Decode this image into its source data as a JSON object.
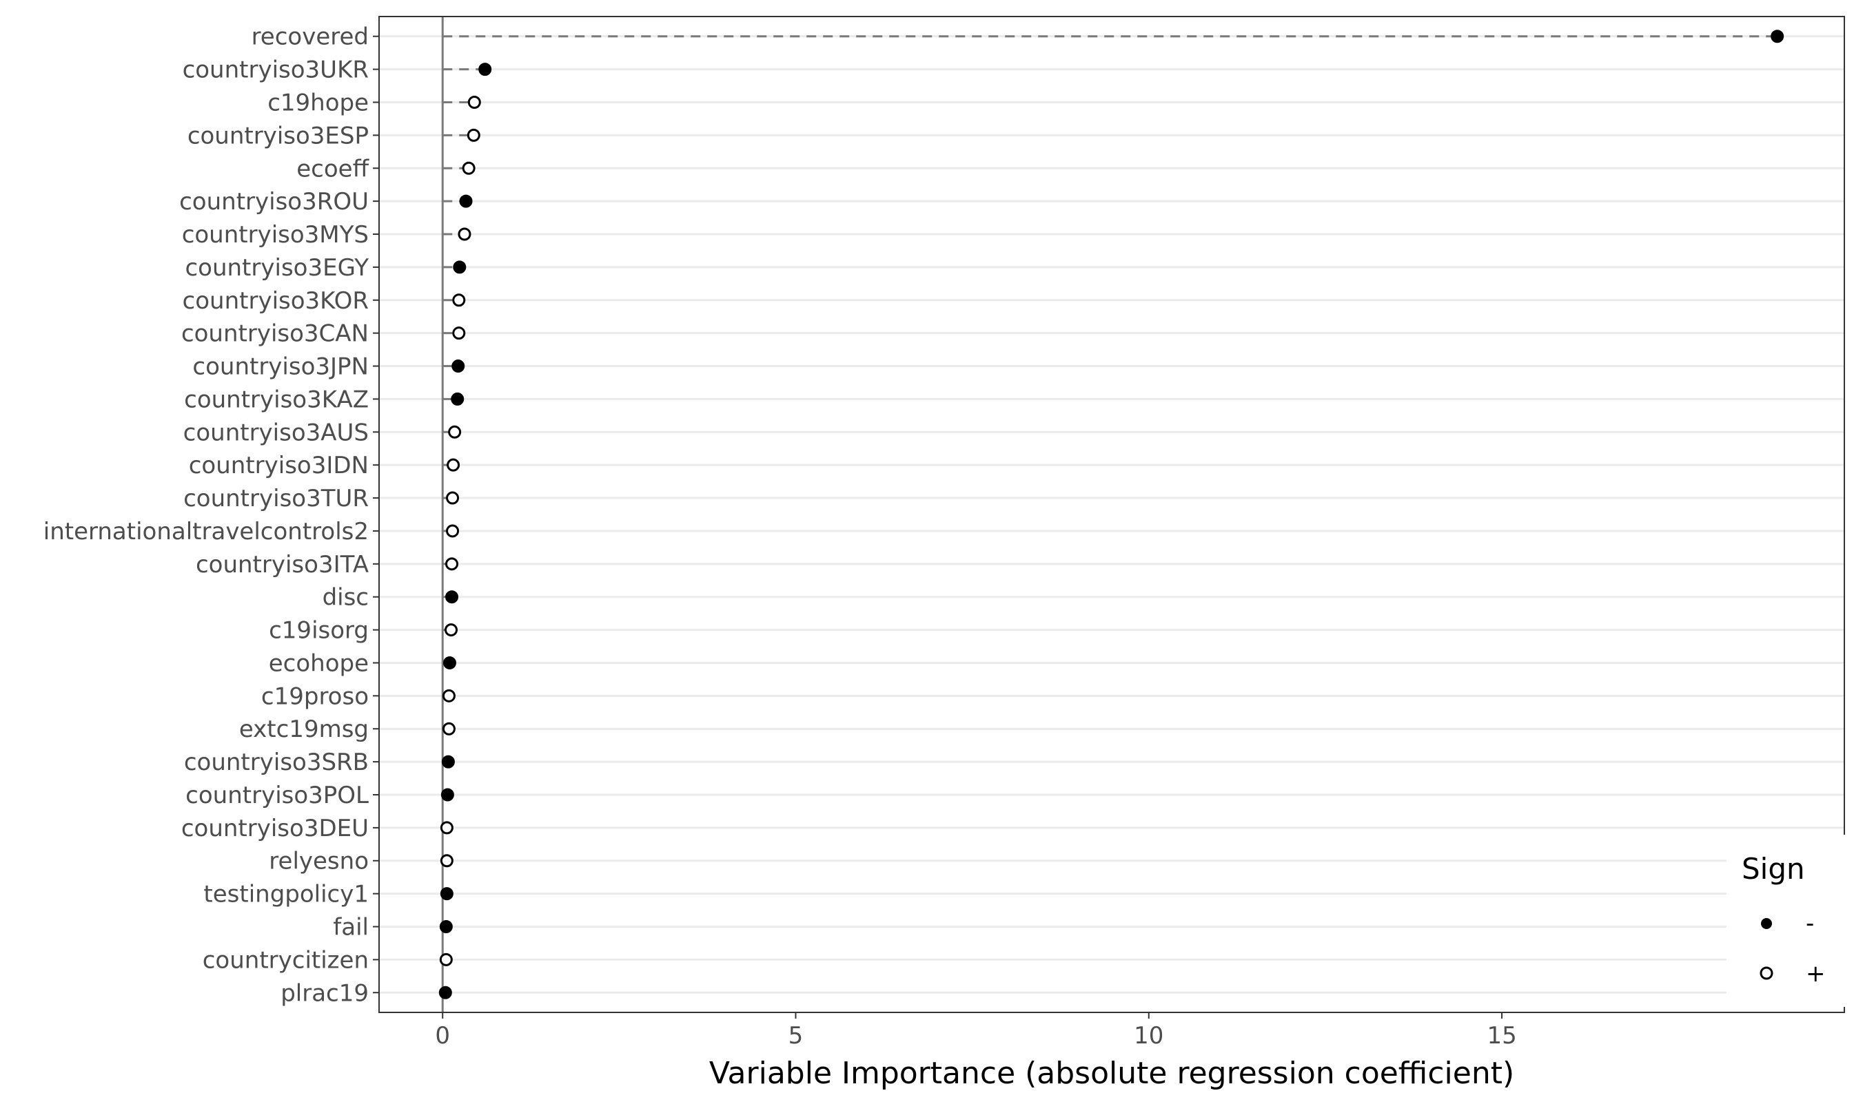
{
  "chart_data": {
    "type": "scatter",
    "title": "",
    "xlabel": "Variable Importance (absolute regression coefficient)",
    "ylabel": "",
    "xlim": [
      -0.9,
      19.85
    ],
    "x_ticks": [
      0,
      5,
      10,
      15
    ],
    "grid": "horizontal major",
    "legend": {
      "title": "Sign",
      "placement": "bottom-right",
      "entries": [
        {
          "label": "-",
          "marker": "filled",
          "color": "#000000"
        },
        {
          "label": "+",
          "marker": "open",
          "color": "#000000"
        }
      ]
    },
    "points": [
      {
        "variable": "recovered",
        "importance": 18.9,
        "sign": "-"
      },
      {
        "variable": "countryiso3UKR",
        "importance": 0.6,
        "sign": "-"
      },
      {
        "variable": "c19hope",
        "importance": 0.45,
        "sign": "+"
      },
      {
        "variable": "countryiso3ESP",
        "importance": 0.44,
        "sign": "+"
      },
      {
        "variable": "ecoeff",
        "importance": 0.37,
        "sign": "+"
      },
      {
        "variable": "countryiso3ROU",
        "importance": 0.33,
        "sign": "-"
      },
      {
        "variable": "countryiso3MYS",
        "importance": 0.31,
        "sign": "+"
      },
      {
        "variable": "countryiso3EGY",
        "importance": 0.24,
        "sign": "-"
      },
      {
        "variable": "countryiso3KOR",
        "importance": 0.23,
        "sign": "+"
      },
      {
        "variable": "countryiso3CAN",
        "importance": 0.23,
        "sign": "+"
      },
      {
        "variable": "countryiso3JPN",
        "importance": 0.22,
        "sign": "-"
      },
      {
        "variable": "countryiso3KAZ",
        "importance": 0.21,
        "sign": "-"
      },
      {
        "variable": "countryiso3AUS",
        "importance": 0.17,
        "sign": "+"
      },
      {
        "variable": "countryiso3IDN",
        "importance": 0.15,
        "sign": "+"
      },
      {
        "variable": "countryiso3TUR",
        "importance": 0.14,
        "sign": "+"
      },
      {
        "variable": "internationaltravelcontrols2",
        "importance": 0.14,
        "sign": "+"
      },
      {
        "variable": "countryiso3ITA",
        "importance": 0.13,
        "sign": "+"
      },
      {
        "variable": "disc",
        "importance": 0.13,
        "sign": "-"
      },
      {
        "variable": "c19isorg",
        "importance": 0.12,
        "sign": "+"
      },
      {
        "variable": "ecohope",
        "importance": 0.1,
        "sign": "-"
      },
      {
        "variable": "c19proso",
        "importance": 0.09,
        "sign": "+"
      },
      {
        "variable": "extc19msg",
        "importance": 0.09,
        "sign": "+"
      },
      {
        "variable": "countryiso3SRB",
        "importance": 0.08,
        "sign": "-"
      },
      {
        "variable": "countryiso3POL",
        "importance": 0.07,
        "sign": "-"
      },
      {
        "variable": "countryiso3DEU",
        "importance": 0.06,
        "sign": "+"
      },
      {
        "variable": "relyesno",
        "importance": 0.06,
        "sign": "+"
      },
      {
        "variable": "testingpolicy1",
        "importance": 0.06,
        "sign": "-"
      },
      {
        "variable": "fail",
        "importance": 0.05,
        "sign": "-"
      },
      {
        "variable": "countrycitizen",
        "importance": 0.05,
        "sign": "+"
      },
      {
        "variable": "plrac19",
        "importance": 0.04,
        "sign": "-"
      }
    ]
  }
}
